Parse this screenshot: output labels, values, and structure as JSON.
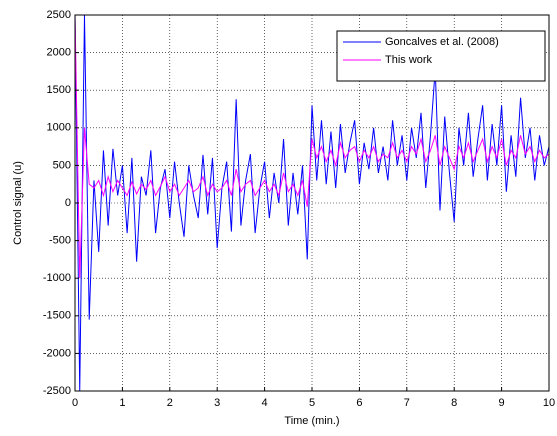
{
  "chart_data": {
    "type": "line",
    "x_label": "Time (min.)",
    "y_label": "Control signal (u)",
    "x": [
      0,
      0.1,
      0.2,
      0.3,
      0.4,
      0.5,
      0.6,
      0.7,
      0.8,
      0.9,
      1,
      1.1,
      1.2,
      1.3,
      1.4,
      1.5,
      1.6,
      1.7,
      1.8,
      1.9,
      2,
      2.1,
      2.2,
      2.3,
      2.4,
      2.5,
      2.6,
      2.7,
      2.8,
      2.9,
      3,
      3.1,
      3.2,
      3.3,
      3.4,
      3.5,
      3.6,
      3.7,
      3.8,
      3.9,
      4,
      4.1,
      4.2,
      4.3,
      4.4,
      4.5,
      4.6,
      4.7,
      4.8,
      4.9,
      5,
      5.1,
      5.2,
      5.3,
      5.4,
      5.5,
      5.6,
      5.7,
      5.8,
      5.9,
      6,
      6.1,
      6.2,
      6.3,
      6.4,
      6.5,
      6.6,
      6.7,
      6.8,
      6.9,
      7,
      7.1,
      7.2,
      7.3,
      7.4,
      7.5,
      7.6,
      7.7,
      7.8,
      7.9,
      8,
      8.1,
      8.2,
      8.3,
      8.4,
      8.5,
      8.6,
      8.7,
      8.8,
      8.9,
      9,
      9.1,
      9.2,
      9.3,
      9.4,
      9.5,
      9.6,
      9.7,
      9.8,
      9.9,
      10
    ],
    "series": [
      {
        "name": "Goncalves et al. (2008)",
        "color": "#0000ff",
        "values": [
          2500,
          -2500,
          2500,
          -1550,
          300,
          -650,
          700,
          -300,
          720,
          100,
          500,
          -400,
          600,
          -780,
          350,
          100,
          700,
          -400,
          200,
          450,
          -200,
          550,
          0,
          -450,
          500,
          100,
          -200,
          640,
          -150,
          600,
          -600,
          200,
          550,
          -380,
          1380,
          -300,
          300,
          650,
          -400,
          200,
          550,
          -200,
          400,
          0,
          850,
          -300,
          400,
          -150,
          500,
          -750,
          1300,
          300,
          1100,
          250,
          950,
          200,
          1050,
          400,
          800,
          1100,
          250,
          800,
          450,
          1000,
          400,
          750,
          300,
          1100,
          500,
          900,
          300,
          1000,
          600,
          1200,
          200,
          900,
          1780,
          -100,
          1150,
          400,
          -250,
          1000,
          500,
          1200,
          350,
          850,
          1300,
          300,
          1050,
          500,
          1300,
          150,
          900,
          350,
          1400,
          600,
          1000,
          300,
          900,
          500,
          750
        ]
      },
      {
        "name": "This work",
        "color": "#ff00ff",
        "values": [
          2500,
          -1000,
          1000,
          250,
          200,
          300,
          100,
          350,
          150,
          300,
          200,
          100,
          280,
          120,
          250,
          180,
          300,
          100,
          220,
          350,
          150,
          250,
          100,
          200,
          300,
          150,
          200,
          350,
          100,
          250,
          150,
          200,
          300,
          100,
          450,
          150,
          250,
          300,
          100,
          200,
          300,
          150,
          250,
          100,
          400,
          150,
          250,
          100,
          300,
          -50,
          850,
          600,
          750,
          550,
          700,
          500,
          800,
          600,
          700,
          750,
          550,
          700,
          600,
          750,
          550,
          650,
          600,
          800,
          600,
          700,
          550,
          750,
          650,
          850,
          550,
          700,
          900,
          500,
          750,
          600,
          450,
          750,
          600,
          800,
          550,
          700,
          850,
          550,
          750,
          600,
          850,
          500,
          700,
          600,
          900,
          650,
          750,
          550,
          700,
          600,
          650
        ]
      }
    ],
    "xlim": [
      0,
      10
    ],
    "xticks": [
      0,
      1,
      2,
      3,
      4,
      5,
      6,
      7,
      8,
      9,
      10
    ],
    "ylim": [
      -2500,
      2500
    ],
    "yticks": [
      -2500,
      -2000,
      -1500,
      -1000,
      -500,
      0,
      500,
      1000,
      1500,
      2000,
      2500
    ],
    "grid": true,
    "legend": "upper right"
  }
}
